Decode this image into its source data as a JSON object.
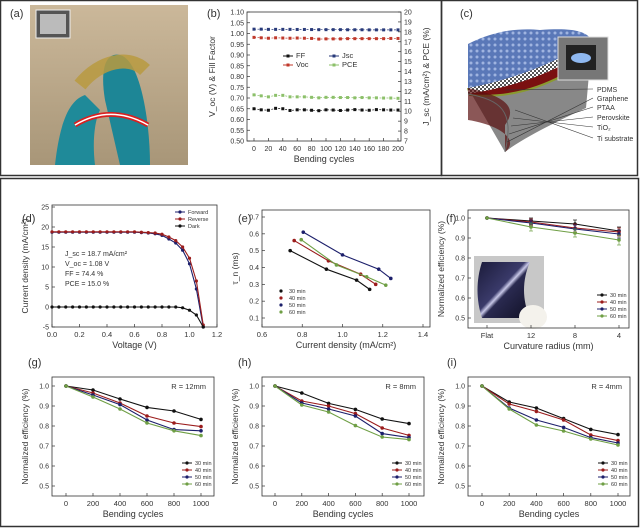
{
  "panel_labels": {
    "a": "(a)",
    "b": "(b)",
    "c": "(c)",
    "d": "(d)",
    "e": "(e)",
    "f": "(f)",
    "g": "(g)",
    "h": "(h)",
    "i": "(i)"
  },
  "schematic_layers": [
    "PDMS",
    "Graphene",
    "PTAA",
    "Perovskite",
    "TiO₂",
    "Ti substrate"
  ],
  "colors": {
    "black": "#111111",
    "red": "#9b1c1c",
    "navy": "#1c1f6b",
    "green": "#6f9f45",
    "voc_red": "#c0392b",
    "pce_green": "#8cc06a",
    "jsc_navy": "#283a7a"
  },
  "chart_data": [
    {
      "id": "b",
      "type": "line",
      "title": "",
      "xlabel": "Bending cycles",
      "ylabel": "V_oc (V) & Fill Factor",
      "ylabel_right": "J_sc (mA/cm²) & PCE (%)",
      "xlim": [
        0,
        200
      ],
      "ylim": [
        0.5,
        1.1
      ],
      "ylim_right": [
        7,
        20
      ],
      "xticks": [
        "0",
        "20",
        "40",
        "60",
        "80",
        "100",
        "120",
        "140",
        "160",
        "180",
        "200"
      ],
      "yticks": [
        "0.50",
        "0.55",
        "0.60",
        "0.65",
        "0.70",
        "0.75",
        "0.80",
        "0.85",
        "0.90",
        "0.95",
        "1.00",
        "1.05",
        "1.10"
      ],
      "yticks_right": [
        "7",
        "8",
        "9",
        "10",
        "11",
        "12",
        "13",
        "14",
        "15",
        "16",
        "17",
        "18",
        "19",
        "20"
      ],
      "x": [
        0,
        10,
        20,
        30,
        40,
        50,
        60,
        70,
        80,
        90,
        100,
        110,
        120,
        130,
        140,
        150,
        160,
        170,
        180,
        190,
        200
      ],
      "series": [
        {
          "name": "FF",
          "axis": "left",
          "color": "#111111",
          "values": [
            0.65,
            0.645,
            0.643,
            0.652,
            0.65,
            0.642,
            0.645,
            0.645,
            0.643,
            0.641,
            0.645,
            0.644,
            0.642,
            0.644,
            0.646,
            0.644,
            0.643,
            0.646,
            0.645,
            0.644,
            0.644
          ]
        },
        {
          "name": "Voc",
          "axis": "left",
          "color": "#c0392b",
          "values": [
            0.982,
            0.98,
            0.978,
            0.98,
            0.979,
            0.978,
            0.979,
            0.978,
            0.977,
            0.974,
            0.975,
            0.975,
            0.975,
            0.976,
            0.976,
            0.976,
            0.976,
            0.976,
            0.976,
            0.977,
            0.977
          ]
        },
        {
          "name": "Jsc",
          "axis": "right",
          "color": "#283a7a",
          "values": [
            18.27,
            18.27,
            18.25,
            18.25,
            18.25,
            18.25,
            18.24,
            18.24,
            18.23,
            18.22,
            18.22,
            18.22,
            18.22,
            18.21,
            18.21,
            18.21,
            18.2,
            18.2,
            18.2,
            18.2,
            18.2
          ]
        },
        {
          "name": "PCE",
          "axis": "right",
          "color": "#8cc06a",
          "values": [
            11.65,
            11.55,
            11.45,
            11.6,
            11.6,
            11.45,
            11.45,
            11.45,
            11.4,
            11.35,
            11.4,
            11.4,
            11.38,
            11.38,
            11.35,
            11.38,
            11.35,
            11.35,
            11.33,
            11.33,
            11.3
          ]
        }
      ],
      "legend": "center"
    },
    {
      "id": "d",
      "type": "line",
      "xlabel": "Voltage (V)",
      "ylabel": "Current density (mA/cm²)",
      "xlim": [
        0,
        1.2
      ],
      "ylim": [
        -5,
        25
      ],
      "xticks": [
        "0.0",
        "0.2",
        "0.4",
        "0.6",
        "0.8",
        "1.0",
        "1.2"
      ],
      "yticks": [
        "-5",
        "0",
        "5",
        "10",
        "15",
        "20",
        "25"
      ],
      "x": [
        0,
        0.05,
        0.1,
        0.15,
        0.2,
        0.25,
        0.3,
        0.35,
        0.4,
        0.45,
        0.5,
        0.55,
        0.6,
        0.65,
        0.7,
        0.75,
        0.8,
        0.85,
        0.9,
        0.95,
        1.0,
        1.05,
        1.1
      ],
      "series": [
        {
          "name": "Forward",
          "color": "#1c1f6b",
          "values": [
            18.7,
            18.7,
            18.7,
            18.7,
            18.7,
            18.7,
            18.7,
            18.7,
            18.7,
            18.7,
            18.7,
            18.7,
            18.7,
            18.6,
            18.5,
            18.3,
            17.9,
            17.0,
            16.0,
            14.2,
            10.8,
            4.5,
            -5
          ]
        },
        {
          "name": "Reverse",
          "color": "#9b1c1c",
          "values": [
            18.8,
            18.8,
            18.8,
            18.8,
            18.8,
            18.8,
            18.8,
            18.8,
            18.8,
            18.8,
            18.8,
            18.8,
            18.8,
            18.7,
            18.6,
            18.5,
            18.2,
            17.5,
            16.6,
            15.0,
            12.2,
            6.5,
            -4.5
          ]
        },
        {
          "name": "Dark",
          "color": "#111111",
          "values": [
            0,
            0,
            0,
            0,
            0,
            0,
            0,
            0,
            0,
            0,
            0,
            0,
            0,
            0,
            0,
            0,
            0,
            0,
            0,
            -0.2,
            -0.8,
            -2.0,
            -5
          ]
        }
      ],
      "annotations": [
        "J_sc = 18.7 mA/cm²",
        "V_oc = 1.08 V",
        "FF = 74.4 %",
        "PCE = 15.0 %"
      ],
      "legend": "top-right"
    },
    {
      "id": "e",
      "type": "scatter",
      "xlabel": "Current density (mA/cm²)",
      "ylabel": "τ_n (ms)",
      "xlim": [
        0.6,
        1.4
      ],
      "ylim": [
        0.1,
        0.7
      ],
      "xticks": [
        "0.6",
        "0.8",
        "1.0",
        "1.2",
        "1.4"
      ],
      "yticks": [
        "0.1",
        "0.2",
        "0.3",
        "0.4",
        "0.5",
        "0.6",
        "0.7"
      ],
      "series": [
        {
          "name": "30 min",
          "color": "#111111",
          "x": [
            0.74,
            0.92,
            1.07,
            1.135
          ],
          "values": [
            0.5,
            0.39,
            0.325,
            0.27
          ]
        },
        {
          "name": "40 min",
          "color": "#9b1c1c",
          "x": [
            0.76,
            0.93,
            1.09,
            1.165
          ],
          "values": [
            0.56,
            0.44,
            0.36,
            0.3
          ]
        },
        {
          "name": "50 min",
          "color": "#1c1f6b",
          "x": [
            0.805,
            1.0,
            1.18,
            1.24
          ],
          "values": [
            0.61,
            0.475,
            0.39,
            0.335
          ]
        },
        {
          "name": "60 min",
          "color": "#6f9f45",
          "x": [
            0.795,
            0.97,
            1.12,
            1.215
          ],
          "values": [
            0.565,
            0.415,
            0.345,
            0.295
          ]
        }
      ],
      "legend": "bottom-left"
    },
    {
      "id": "f",
      "type": "line",
      "xlabel": "Curvature radius (mm)",
      "ylabel": "Normalized efficiency (%)",
      "categories": [
        "Flat",
        "12",
        "8",
        "4"
      ],
      "ylim": [
        0.5,
        1.0
      ],
      "yticks": [
        "0.5",
        "0.6",
        "0.7",
        "0.8",
        "0.9",
        "1.0"
      ],
      "series": [
        {
          "name": "30 min",
          "color": "#111111",
          "values": [
            1.0,
            0.985,
            0.97,
            0.935
          ],
          "err": [
            0,
            0.015,
            0.02,
            0.02
          ]
        },
        {
          "name": "40 min",
          "color": "#9b1c1c",
          "values": [
            1.0,
            0.98,
            0.95,
            0.93
          ],
          "err": [
            0,
            0.015,
            0.02,
            0.02
          ]
        },
        {
          "name": "50 min",
          "color": "#1c1f6b",
          "values": [
            1.0,
            0.975,
            0.945,
            0.92
          ],
          "err": [
            0,
            0.015,
            0.02,
            0.02
          ]
        },
        {
          "name": "60 min",
          "color": "#6f9f45",
          "values": [
            1.0,
            0.955,
            0.925,
            0.89
          ],
          "err": [
            0,
            0.02,
            0.02,
            0.025
          ]
        }
      ],
      "legend": "bottom-right"
    },
    {
      "id": "g",
      "type": "line",
      "xlabel": "Bending cycles",
      "ylabel": "Normalized efficiency (%)",
      "annotation": "R = 12mm",
      "xlim": [
        0,
        1000
      ],
      "ylim": [
        0.5,
        1.0
      ],
      "xticks": [
        "0",
        "200",
        "400",
        "600",
        "800",
        "1000"
      ],
      "yticks": [
        "0.5",
        "0.6",
        "0.7",
        "0.8",
        "0.9",
        "1.0"
      ],
      "x": [
        0,
        200,
        400,
        600,
        800,
        1000
      ],
      "series": [
        {
          "name": "30 min",
          "color": "#111111",
          "values": [
            1.0,
            0.98,
            0.935,
            0.893,
            0.875,
            0.833
          ]
        },
        {
          "name": "40 min",
          "color": "#9b1c1c",
          "values": [
            1.0,
            0.965,
            0.915,
            0.85,
            0.815,
            0.797
          ]
        },
        {
          "name": "50 min",
          "color": "#1c1f6b",
          "values": [
            1.0,
            0.955,
            0.907,
            0.83,
            0.782,
            0.776
          ]
        },
        {
          "name": "60 min",
          "color": "#6f9f45",
          "values": [
            1.0,
            0.945,
            0.885,
            0.815,
            0.776,
            0.752
          ]
        }
      ],
      "legend": "bottom-right"
    },
    {
      "id": "h",
      "type": "line",
      "xlabel": "Bending cycles",
      "ylabel": "Normalized efficiency (%)",
      "annotation": "R = 8mm",
      "xlim": [
        0,
        1000
      ],
      "ylim": [
        0.5,
        1.0
      ],
      "xticks": [
        "0",
        "200",
        "400",
        "600",
        "800",
        "1000"
      ],
      "yticks": [
        "0.5",
        "0.6",
        "0.7",
        "0.8",
        "0.9",
        "1.0"
      ],
      "x": [
        0,
        200,
        400,
        600,
        800,
        1000
      ],
      "series": [
        {
          "name": "30 min",
          "color": "#111111",
          "values": [
            1.0,
            0.965,
            0.913,
            0.883,
            0.835,
            0.812
          ]
        },
        {
          "name": "40 min",
          "color": "#9b1c1c",
          "values": [
            1.0,
            0.925,
            0.9,
            0.862,
            0.79,
            0.753
          ]
        },
        {
          "name": "50 min",
          "color": "#1c1f6b",
          "values": [
            1.0,
            0.915,
            0.885,
            0.85,
            0.762,
            0.742
          ]
        },
        {
          "name": "60 min",
          "color": "#6f9f45",
          "values": [
            1.0,
            0.905,
            0.87,
            0.802,
            0.745,
            0.732
          ]
        }
      ],
      "legend": "bottom-right"
    },
    {
      "id": "i",
      "type": "line",
      "xlabel": "Bending cycles",
      "ylabel": "Normalized efficiency (%)",
      "annotation": "R = 4mm",
      "xlim": [
        0,
        1000
      ],
      "ylim": [
        0.5,
        1.0
      ],
      "xticks": [
        "0",
        "200",
        "400",
        "600",
        "800",
        "1000"
      ],
      "yticks": [
        "0.5",
        "0.6",
        "0.7",
        "0.8",
        "0.9",
        "1.0"
      ],
      "x": [
        0,
        200,
        400,
        600,
        800,
        1000
      ],
      "series": [
        {
          "name": "30 min",
          "color": "#111111",
          "values": [
            1.0,
            0.92,
            0.89,
            0.837,
            0.783,
            0.757
          ]
        },
        {
          "name": "40 min",
          "color": "#9b1c1c",
          "values": [
            1.0,
            0.91,
            0.873,
            0.83,
            0.755,
            0.727
          ]
        },
        {
          "name": "50 min",
          "color": "#1c1f6b",
          "values": [
            1.0,
            0.89,
            0.83,
            0.793,
            0.742,
            0.715
          ]
        },
        {
          "name": "60 min",
          "color": "#6f9f45",
          "values": [
            1.0,
            0.885,
            0.805,
            0.775,
            0.735,
            0.705
          ]
        }
      ],
      "legend": "bottom-right"
    }
  ]
}
